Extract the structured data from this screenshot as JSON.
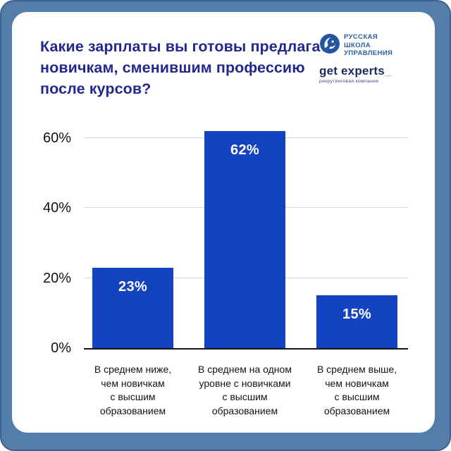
{
  "header": {
    "title": "Какие зарплаты вы готовы предлагать новичкам, сменившим профессию после курсов?",
    "title_lines": [
      "Какие зарплаты вы готовы предлагать",
      "новичкам, сменившим профессию",
      "после курсов?"
    ],
    "title_color": "#21298e"
  },
  "logos": {
    "rsu": {
      "lines": [
        "РУССКАЯ",
        "ШКОЛА",
        "УПРАВЛЕНИЯ"
      ],
      "icon": "rsu-globe-face-icon",
      "text_color": "#2b5fa5",
      "circle_color": "#2457a0"
    },
    "get_experts": {
      "name": "get experts",
      "underscore": "_",
      "tagline": "рекрутинговая компания",
      "name_color": "#1d2a5e",
      "underscore_color": "#43bfc4"
    }
  },
  "chart_data": {
    "type": "bar",
    "title": "Какие зарплаты вы готовы предлагать новичкам, сменившим профессию после курсов?",
    "categories": [
      "В среднем ниже, чем новичкам с высшим образованием",
      "В среднем на одном уровне с новичками с высшим образованием",
      "В среднем выше, чем новичкам с высшим образованием"
    ],
    "category_lines": [
      [
        "В среднем ниже,",
        "чем новичкам",
        "с высшим",
        "образованием"
      ],
      [
        "В среднем на одном",
        "уровне с новичками",
        "с высшим",
        "образованием"
      ],
      [
        "В среднем выше,",
        "чем новичкам",
        "с высшим",
        "образованием"
      ]
    ],
    "values": [
      23,
      62,
      15
    ],
    "value_labels": [
      "23%",
      "62%",
      "15%"
    ],
    "yticks": [
      {
        "value": 0,
        "label": "0%"
      },
      {
        "value": 20,
        "label": "20%"
      },
      {
        "value": 40,
        "label": "40%"
      },
      {
        "value": 60,
        "label": "60%"
      }
    ],
    "ylim": [
      0,
      66
    ],
    "grid": true,
    "legend": false,
    "xlabel": "",
    "ylabel": "",
    "bar_color": "#1443c1",
    "value_label_color": "#ffffff",
    "axis_color": "#141414",
    "gridline_color": "#d8d8d8"
  }
}
